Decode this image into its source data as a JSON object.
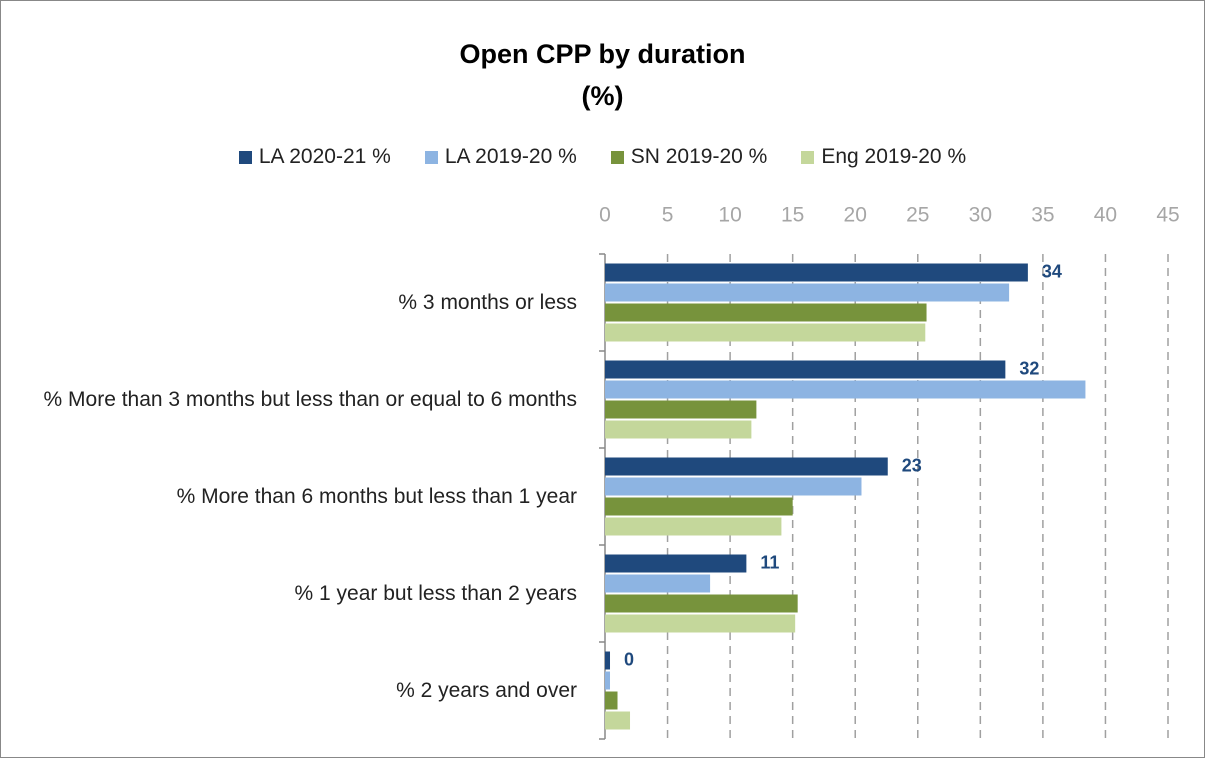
{
  "chart_data": {
    "type": "barh",
    "title": "Open CPP by duration",
    "subtitle": "(%)",
    "categories": [
      "% 3 months or less",
      "% More than 3 months but less than or equal to 6 months",
      "% More than 6 months but less than 1 year",
      "% 1 year but less than 2 years",
      "% 2 years and over"
    ],
    "series": [
      {
        "name": "LA 2020-21 %",
        "color": "#1f497d",
        "values": [
          33.8,
          32.0,
          22.6,
          11.3,
          0.4
        ],
        "value_labels": [
          "34",
          "32",
          "23",
          "11",
          "0"
        ]
      },
      {
        "name": "LA 2019-20 %",
        "color": "#8db4e2",
        "values": [
          32.3,
          38.4,
          20.5,
          8.4,
          0.4
        ]
      },
      {
        "name": "SN 2019-20 %",
        "color": "#77933c",
        "values": [
          25.7,
          12.1,
          15.0,
          15.4,
          1.0
        ]
      },
      {
        "name": "Eng 2019-20 %",
        "color": "#c4d79b",
        "values": [
          25.6,
          11.7,
          14.1,
          15.2,
          2.0
        ]
      }
    ],
    "xlim": [
      0,
      45
    ],
    "xticks": [
      0,
      5,
      10,
      15,
      20,
      25,
      30,
      35,
      40,
      45
    ],
    "grid": true,
    "legend": "top"
  }
}
